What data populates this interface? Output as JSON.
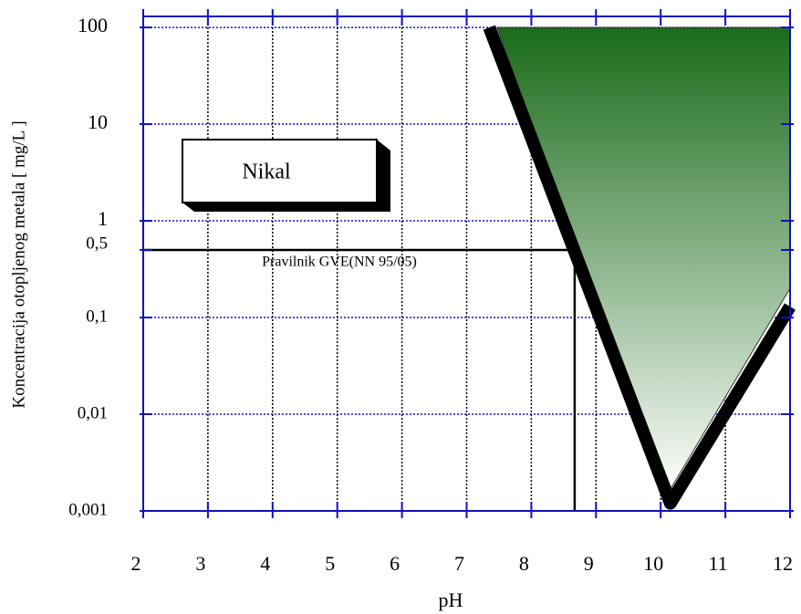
{
  "chart_data": {
    "type": "line",
    "xlabel": "pH",
    "ylabel": "Koncentracija otopljenog metala [ mg/L ]",
    "xlim": [
      2,
      12
    ],
    "ylim": [
      0.001,
      130
    ],
    "yscale": "log",
    "xticks": [
      2,
      3,
      4,
      5,
      6,
      7,
      8,
      9,
      10,
      11,
      12
    ],
    "yticks": [
      100,
      10,
      1,
      {
        "value": 0.5,
        "label": "0,5"
      },
      {
        "value": 0.1,
        "label": "0,1"
      },
      {
        "value": 0.01,
        "label": "0,01"
      },
      {
        "value": 0.001,
        "label": "0,001"
      }
    ],
    "grid": true,
    "axis_color": "#1010c0",
    "area": {
      "x": [
        7.47,
        12,
        12,
        10.08
      ],
      "y": [
        100,
        100,
        0.2,
        0.0014
      ],
      "colors": [
        "#1a6b1a",
        "#ffffff"
      ]
    },
    "series": [
      {
        "x": [
          2,
          8.67
        ],
        "y": [
          0.5,
          0.5
        ],
        "color": "#000000"
      },
      {
        "x": [
          8.67,
          8.67
        ],
        "y": [
          0.5,
          0.001
        ],
        "color": "#000000"
      },
      {
        "x": [
          7.35,
          10.15,
          12
        ],
        "y": [
          100,
          0.0012,
          0.13
        ],
        "color": "#000000"
      }
    ],
    "annotations": [
      "Nikal",
      "Pravilnik GVE(NN 95/05)"
    ]
  }
}
